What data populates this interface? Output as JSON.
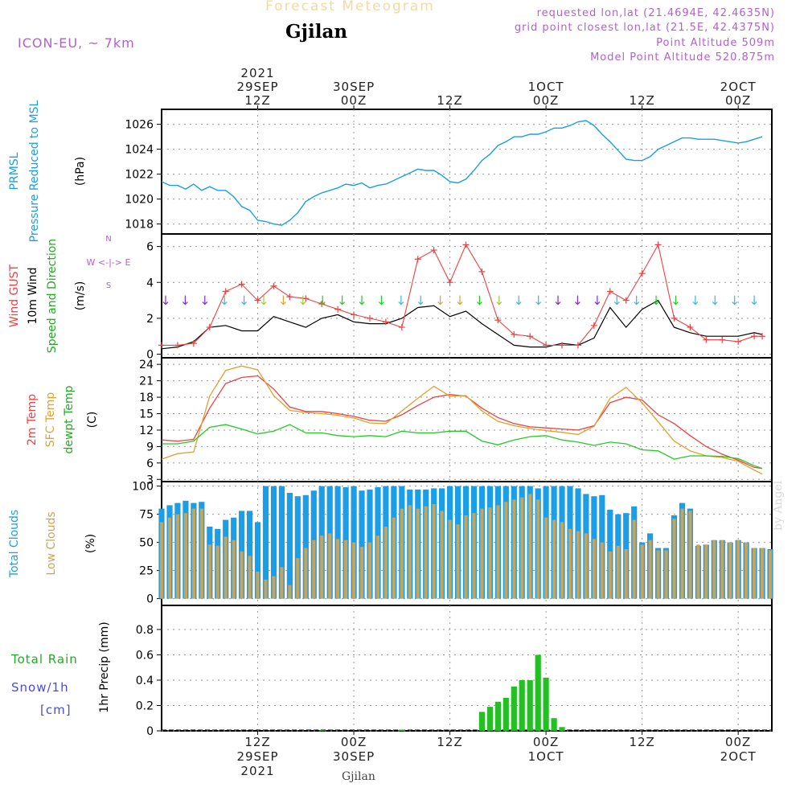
{
  "header": {
    "title": "Forecast Meteogram",
    "location": "Gjilan",
    "model": "ICON-EU, ~ 7km",
    "requested": "requested lon,lat (21.4694E, 42.4635N)",
    "grid_point": "grid point closest lon,lat (21.5E, 42.4375N)",
    "point_altitude": "Point Altitude 509m",
    "model_altitude": "Model Point Altitude 520.875m"
  },
  "footer": {
    "location": "Gjilan",
    "credit": "by Angel"
  },
  "colors": {
    "pressure": "#1a9ee8",
    "gust": "#f04040",
    "wind": "#000000",
    "t2m": "#f04040",
    "sfc": "#e3a02e",
    "dew": "#22cc22",
    "total_cloud": "#1a9ee8",
    "low_cloud": "#c8a45a",
    "rain": "#22c022",
    "snow": "#4a4adf",
    "label_green": "#22aa22",
    "label_purple": "#b35fd3"
  },
  "time_axis": {
    "top_labels": [
      {
        "t": 12,
        "lines": [
          "2021",
          "29SEP",
          "12Z"
        ]
      },
      {
        "t": 24,
        "lines": [
          "30SEP",
          "00Z"
        ]
      },
      {
        "t": 36,
        "lines": [
          "12Z"
        ]
      },
      {
        "t": 48,
        "lines": [
          "1OCT",
          "00Z"
        ]
      },
      {
        "t": 60,
        "lines": [
          "12Z"
        ]
      },
      {
        "t": 72,
        "lines": [
          "2OCT",
          "00Z"
        ]
      }
    ],
    "bottom_labels": [
      {
        "t": 12,
        "lines": [
          "12Z",
          "29SEP",
          "2021"
        ]
      },
      {
        "t": 24,
        "lines": [
          "00Z",
          "30SEP"
        ]
      },
      {
        "t": 36,
        "lines": [
          "12Z"
        ]
      },
      {
        "t": 48,
        "lines": [
          "00Z",
          "1OCT"
        ]
      },
      {
        "t": 60,
        "lines": [
          "12Z"
        ]
      },
      {
        "t": 72,
        "lines": [
          "00Z",
          "2OCT"
        ]
      }
    ]
  },
  "panel_labels": {
    "pressure": [
      "PRMSL",
      "Pressure Reduced to MSL",
      "(hPa)"
    ],
    "wind": [
      "Wind GUST",
      "10m Wind",
      "Speed and Direction",
      "(m/s)"
    ],
    "compass": [
      "N",
      "W  <-|->  E",
      "S"
    ],
    "temp": [
      "2m Temp",
      "SFC Temp",
      "dewpt Temp",
      "(C)"
    ],
    "clouds": [
      "Total Clouds",
      "Low Clouds",
      "(%)"
    ],
    "precip": [
      "Total  Rain",
      "Snow/1h",
      "[cm]",
      "1hr Precip (mm)"
    ]
  },
  "chart_data": [
    {
      "type": "line",
      "name": "pressure",
      "x_unit": "hours from 2021-09-29 00Z",
      "ylabel": "(hPa)",
      "ylim": [
        1017.2,
        1027.2
      ],
      "yticks": [
        1018,
        1020,
        1022,
        1024,
        1026
      ],
      "x": [
        0,
        1,
        2,
        3,
        4,
        5,
        6,
        7,
        8,
        9,
        10,
        11,
        12,
        13,
        14,
        15,
        16,
        17,
        18,
        19,
        20,
        21,
        22,
        23,
        24,
        25,
        26,
        27,
        28,
        29,
        30,
        31,
        32,
        33,
        34,
        35,
        36,
        37,
        38,
        39,
        40,
        41,
        42,
        43,
        44,
        45,
        46,
        47,
        48,
        49,
        50,
        51,
        52,
        53,
        54,
        55,
        56,
        57,
        58,
        59,
        60,
        61,
        62,
        63,
        64,
        65,
        66,
        67,
        68,
        69,
        70,
        71,
        72,
        73,
        74,
        75
      ],
      "series": [
        {
          "values": [
            1021.4,
            1021.1,
            1021.1,
            1020.8,
            1021.2,
            1020.7,
            1021.0,
            1020.7,
            1020.7,
            1020.2,
            1019.4,
            1019.1,
            1018.3,
            1018.2,
            1018.0,
            1017.9,
            1018.3,
            1018.9,
            1019.8,
            1020.2,
            1020.5,
            1020.7,
            1020.9,
            1021.2,
            1021.1,
            1021.3,
            1020.9,
            1021.1,
            1021.2,
            1021.5,
            1021.8,
            1022.1,
            1022.4,
            1022.3,
            1022.3,
            1021.9,
            1021.4,
            1021.3,
            1021.6,
            1022.3,
            1023.1,
            1023.6,
            1024.3,
            1024.6,
            1025.0,
            1025.0,
            1025.2,
            1025.2,
            1025.4,
            1025.7,
            1025.7,
            1025.9,
            1026.2,
            1026.3,
            1025.9,
            1025.2,
            1024.6,
            1023.9,
            1023.2,
            1023.1,
            1023.1,
            1023.4,
            1024.0,
            1024.3,
            1024.6,
            1024.9,
            1024.9,
            1024.8,
            1024.8,
            1024.8,
            1024.7,
            1024.6,
            1024.5,
            1024.6,
            1024.8,
            1025.0
          ]
        }
      ]
    },
    {
      "type": "line",
      "name": "wind",
      "x_unit": "hours from 2021-09-29 00Z",
      "ylabel": "(m/s)",
      "ylim": [
        -0.2,
        6.7
      ],
      "yticks": [
        0,
        2,
        4,
        6
      ],
      "x": [
        0,
        2,
        4,
        6,
        8,
        10,
        12,
        14,
        16,
        18,
        20,
        22,
        24,
        26,
        28,
        30,
        32,
        34,
        36,
        38,
        40,
        42,
        44,
        46,
        48,
        50,
        52,
        54,
        56,
        58,
        60,
        62,
        64,
        66,
        68,
        70,
        72,
        74,
        75
      ],
      "series": [
        {
          "name": "Wind GUST",
          "values": [
            0.5,
            0.5,
            0.6,
            1.5,
            3.5,
            3.9,
            3.0,
            3.8,
            3.2,
            3.1,
            2.8,
            2.5,
            2.2,
            2.0,
            1.8,
            1.5,
            5.3,
            5.8,
            4.0,
            6.1,
            4.6,
            1.9,
            1.1,
            1.0,
            0.5,
            0.5,
            0.5,
            1.6,
            3.5,
            3.0,
            4.5,
            6.1,
            2.0,
            1.5,
            0.8,
            0.8,
            0.7,
            1.0,
            1.0
          ]
        },
        {
          "name": "10m Wind",
          "values": [
            0.3,
            0.4,
            0.7,
            1.5,
            1.6,
            1.3,
            1.3,
            2.1,
            1.8,
            1.5,
            2.0,
            2.2,
            1.8,
            1.7,
            1.7,
            2.0,
            2.6,
            2.7,
            2.1,
            2.4,
            1.7,
            1.1,
            0.5,
            0.4,
            0.4,
            0.6,
            0.5,
            0.9,
            2.6,
            1.5,
            2.5,
            3.0,
            1.5,
            1.2,
            1.0,
            1.0,
            1.0,
            1.2,
            1.1
          ]
        }
      ]
    },
    {
      "type": "line",
      "name": "temperature",
      "x_unit": "hours from 2021-09-29 00Z",
      "ylabel": "(C)",
      "ylim": [
        2.6,
        25.2
      ],
      "yticks": [
        3,
        6,
        9,
        12,
        15,
        18,
        21,
        24
      ],
      "x": [
        0,
        2,
        4,
        6,
        8,
        10,
        12,
        14,
        16,
        18,
        20,
        22,
        24,
        26,
        28,
        30,
        32,
        34,
        36,
        38,
        40,
        42,
        44,
        46,
        48,
        50,
        52,
        54,
        56,
        58,
        60,
        62,
        64,
        66,
        68,
        70,
        72,
        74,
        75
      ],
      "series": [
        {
          "name": "2m Temp",
          "values": [
            10.2,
            10.0,
            10.3,
            16.0,
            20.5,
            21.6,
            21.9,
            19.5,
            16.2,
            15.4,
            15.4,
            15.0,
            14.5,
            13.8,
            13.6,
            14.8,
            16.5,
            18.0,
            18.5,
            18.2,
            16.0,
            14.3,
            13.2,
            12.6,
            12.4,
            12.2,
            12.0,
            12.8,
            17.0,
            18.0,
            17.5,
            14.8,
            13.2,
            11.0,
            9.0,
            7.6,
            6.5,
            5.2,
            5.0
          ]
        },
        {
          "name": "SFC Temp",
          "values": [
            6.7,
            7.7,
            8.0,
            18.2,
            22.9,
            23.7,
            23.0,
            18.3,
            15.6,
            15.2,
            15.0,
            14.7,
            14.2,
            13.3,
            13.2,
            15.5,
            17.8,
            20.0,
            18.2,
            18.3,
            15.5,
            13.6,
            12.8,
            12.3,
            11.9,
            11.6,
            11.2,
            12.7,
            17.8,
            19.8,
            17.0,
            13.5,
            10.0,
            8.2,
            7.3,
            7.0,
            6.3,
            4.7,
            4.0
          ]
        },
        {
          "name": "dewpt Temp",
          "values": [
            9.5,
            9.5,
            10.0,
            12.5,
            13.0,
            12.2,
            11.3,
            11.8,
            13.0,
            11.5,
            11.5,
            11.0,
            10.8,
            11.0,
            10.8,
            11.8,
            11.5,
            11.5,
            11.8,
            11.8,
            10.0,
            9.3,
            10.2,
            10.8,
            11.0,
            10.2,
            9.8,
            9.2,
            9.8,
            9.5,
            8.4,
            8.2,
            6.7,
            7.3,
            7.3,
            7.2,
            6.8,
            5.5,
            5.0
          ]
        }
      ]
    },
    {
      "type": "bar",
      "name": "clouds",
      "x_unit": "hours from 2021-09-29 00Z",
      "ylabel": "(%)",
      "ylim": [
        -6,
        104
      ],
      "yticks": [
        0,
        25,
        50,
        75,
        100
      ],
      "x": [
        0,
        1,
        2,
        3,
        4,
        5,
        6,
        7,
        8,
        9,
        10,
        11,
        12,
        13,
        14,
        15,
        16,
        17,
        18,
        19,
        20,
        21,
        22,
        23,
        24,
        25,
        26,
        27,
        28,
        29,
        30,
        31,
        32,
        33,
        34,
        35,
        36,
        37,
        38,
        39,
        40,
        41,
        42,
        43,
        44,
        45,
        46,
        47,
        48,
        49,
        50,
        51,
        52,
        53,
        54,
        55,
        56,
        57,
        58,
        59,
        60,
        61,
        62,
        63,
        64,
        65,
        66,
        67,
        68,
        69,
        70,
        71,
        72,
        73,
        74,
        75,
        76
      ],
      "series": [
        {
          "name": "Total Clouds",
          "values": [
            80,
            83,
            85,
            87,
            85,
            86,
            64,
            62,
            70,
            72,
            78,
            78,
            68,
            100,
            100,
            100,
            94,
            91,
            92,
            96,
            100,
            100,
            100,
            99,
            100,
            96,
            97,
            99,
            100,
            100,
            100,
            97,
            97,
            97,
            98,
            98,
            100,
            100,
            100,
            100,
            100,
            100,
            100,
            100,
            100,
            100,
            100,
            98,
            100,
            100,
            100,
            100,
            98,
            93,
            91,
            92,
            79,
            75,
            76,
            82,
            50,
            58,
            45,
            45,
            74,
            85,
            80,
            47,
            48,
            52,
            52,
            50,
            52,
            50,
            45,
            45,
            44
          ]
        },
        {
          "name": "Low Clouds",
          "values": [
            68,
            72,
            75,
            76,
            80,
            80,
            48,
            47,
            55,
            52,
            42,
            38,
            24,
            17,
            20,
            28,
            12,
            36,
            45,
            52,
            56,
            58,
            53,
            52,
            50,
            46,
            50,
            56,
            64,
            72,
            80,
            83,
            80,
            82,
            84,
            78,
            70,
            66,
            74,
            76,
            80,
            81,
            83,
            86,
            88,
            90,
            93,
            88,
            72,
            70,
            68,
            62,
            60,
            58,
            53,
            50,
            42,
            47,
            44,
            70,
            48,
            52,
            43,
            43,
            71,
            80,
            78,
            48,
            48,
            52,
            52,
            50,
            52,
            50,
            45,
            45,
            43
          ]
        }
      ]
    },
    {
      "type": "bar",
      "name": "precip",
      "x_unit": "hours from 2021-09-29 00Z",
      "ylabel": "1hr Precip (mm)",
      "ylim": [
        0,
        0.99
      ],
      "yticks": [
        0,
        0.2,
        0.4,
        0.6,
        0.8
      ],
      "x": [
        20,
        30,
        40,
        41,
        42,
        43,
        44,
        45,
        46,
        47,
        48,
        49,
        50
      ],
      "series": [
        {
          "name": "Total Rain",
          "values": [
            0.005,
            0.01,
            0.15,
            0.19,
            0.23,
            0.26,
            0.35,
            0.4,
            0.4,
            0.6,
            0.42,
            0.1,
            0.03
          ]
        }
      ]
    }
  ]
}
